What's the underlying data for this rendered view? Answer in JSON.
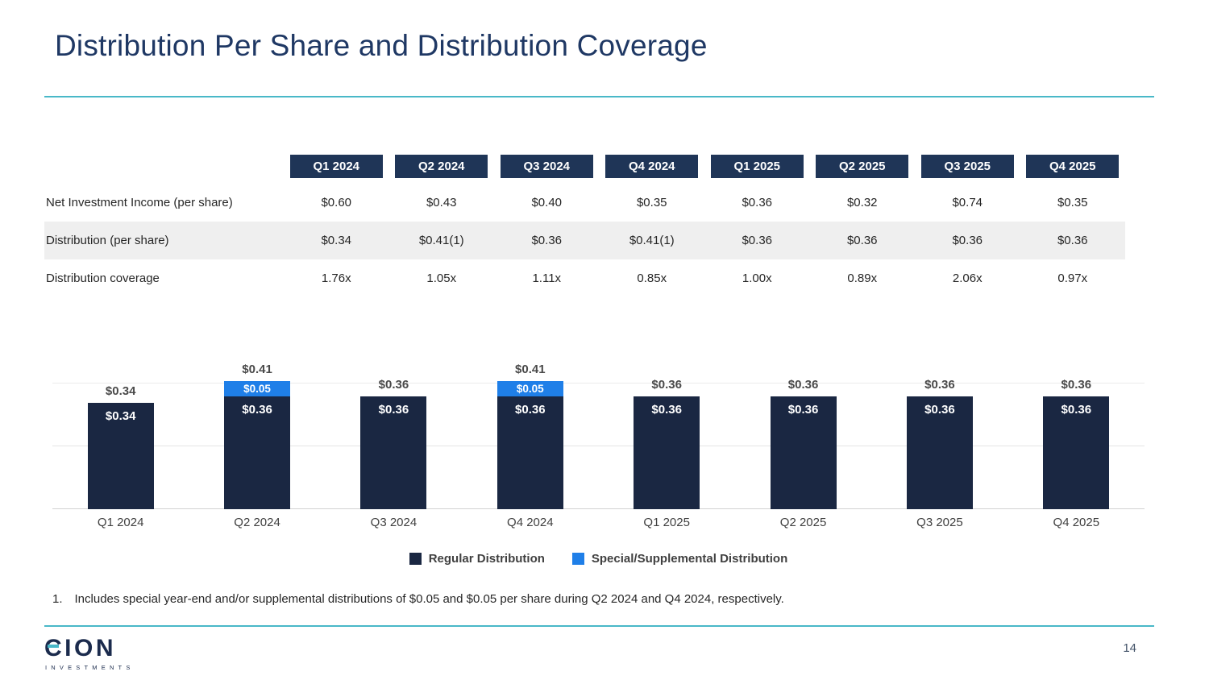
{
  "slide": {
    "title": "Distribution Per Share and Distribution Coverage",
    "page_number": "14",
    "footnote_marker": "1.",
    "footnote_text": "Includes special year-end and/or supplemental distributions of $0.05 and $0.05 per share during Q2 2024 and Q4 2024, respectively.",
    "logo": {
      "name": "CION",
      "tagline": "INVESTMENTS"
    },
    "colors": {
      "navy": "#1B2B4D",
      "bar_navy": "#1A2742",
      "special_blue": "#1F7FE8",
      "teal": "#49B8C8",
      "shaded_row": "#EFEFEF"
    }
  },
  "table": {
    "columns": [
      "Q1 2024",
      "Q2 2024",
      "Q3 2024",
      "Q4 2024",
      "Q1 2025",
      "Q2 2025",
      "Q3 2025",
      "Q4 2025"
    ],
    "rows": [
      {
        "label": "Net Investment Income (per share)",
        "shaded": false,
        "values": [
          "$0.60",
          "$0.43",
          "$0.40",
          "$0.35",
          "$0.36",
          "$0.32",
          "$0.74",
          "$0.35"
        ]
      },
      {
        "label": "Distribution (per share)",
        "shaded": true,
        "values": [
          "$0.34",
          "$0.41(1)",
          "$0.36",
          "$0.41(1)",
          "$0.36",
          "$0.36",
          "$0.36",
          "$0.36"
        ]
      },
      {
        "label": "Distribution coverage",
        "shaded": false,
        "values": [
          "1.76x",
          "1.05x",
          "1.11x",
          "0.85x",
          "1.00x",
          "0.89x",
          "2.06x",
          "0.97x"
        ]
      }
    ]
  },
  "chart_data": {
    "type": "bar",
    "stacked": true,
    "title": "",
    "xlabel": "",
    "ylabel": "",
    "ylim": [
      0,
      0.45
    ],
    "grid": true,
    "legend_position": "bottom",
    "categories": [
      "Q1 2024",
      "Q2 2024",
      "Q3 2024",
      "Q4 2024",
      "Q1 2025",
      "Q2 2025",
      "Q3 2025",
      "Q4 2025"
    ],
    "series": [
      {
        "name": "Regular Distribution",
        "color": "#1A2742",
        "values": [
          0.34,
          0.36,
          0.36,
          0.36,
          0.36,
          0.36,
          0.36,
          0.36
        ],
        "labels": [
          "$0.34",
          "$0.36",
          "$0.36",
          "$0.36",
          "$0.36",
          "$0.36",
          "$0.36",
          "$0.36"
        ]
      },
      {
        "name": "Special/Supplemental Distribution",
        "color": "#1F7FE8",
        "values": [
          0,
          0.05,
          0,
          0.05,
          0,
          0,
          0,
          0
        ],
        "labels": [
          "",
          "$0.05",
          "",
          "$0.05",
          "",
          "",
          "",
          ""
        ]
      }
    ],
    "totals": [
      "$0.34",
      "$0.41",
      "$0.36",
      "$0.41",
      "$0.36",
      "$0.36",
      "$0.36",
      "$0.36"
    ]
  },
  "legend": [
    {
      "label": "Regular Distribution",
      "color": "#1A2742"
    },
    {
      "label": "Special/Supplemental Distribution",
      "color": "#1F7FE8"
    }
  ]
}
